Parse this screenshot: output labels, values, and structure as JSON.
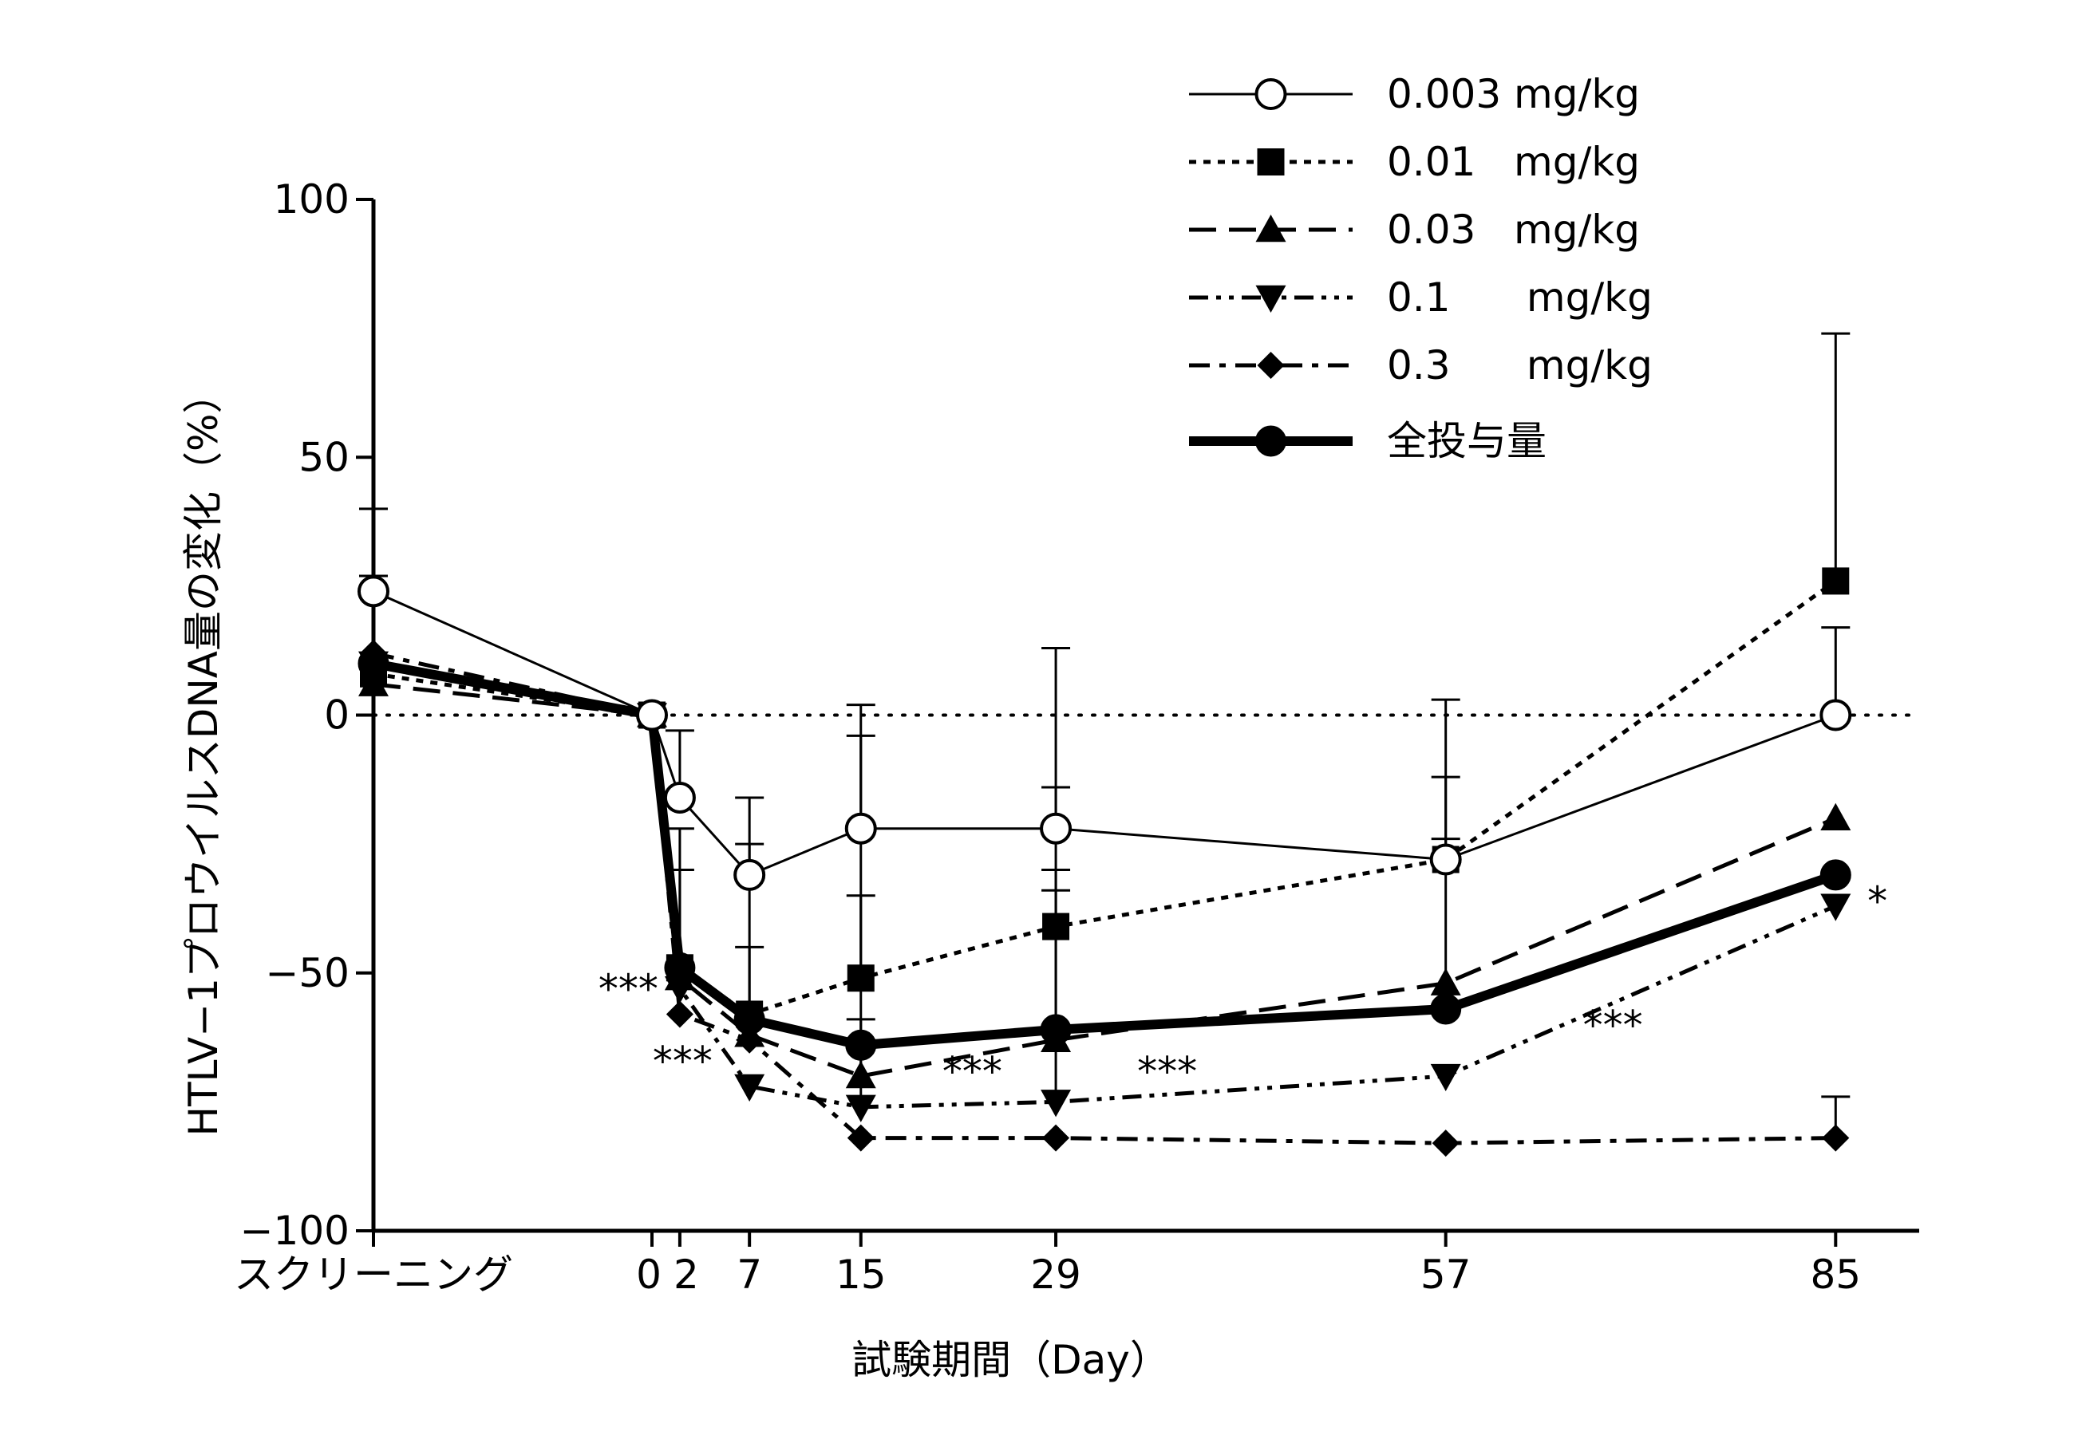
{
  "chart_data": {
    "type": "line",
    "xlabel": "試験期間（Day）",
    "ylabel": "HTLV−1プロウイルスDNA量の変化（%）",
    "ylim": [
      -100,
      100
    ],
    "yticks": [
      100,
      50,
      0,
      -50,
      -100
    ],
    "reference_line_y": 0,
    "x_categories": [
      {
        "label": "スクリーニング",
        "x": -20
      },
      {
        "label": "0",
        "x": 0
      },
      {
        "label": "2",
        "x": 2
      },
      {
        "label": "7",
        "x": 7
      },
      {
        "label": "15",
        "x": 15
      },
      {
        "label": "29",
        "x": 29
      },
      {
        "label": "57",
        "x": 57
      },
      {
        "label": "85",
        "x": 85
      }
    ],
    "x_domain": [
      -20,
      91
    ],
    "legend_position": "top-right",
    "series": [
      {
        "name": "0.003 mg/kg",
        "marker": "circle-open",
        "line": "solid-thin",
        "x": [
          -20,
          0,
          2,
          7,
          15,
          29,
          57,
          85
        ],
        "y": [
          24,
          0,
          -16,
          -31,
          -22,
          -22,
          -28,
          0
        ],
        "err_upper": [
          40,
          0,
          -3,
          -16,
          2,
          13,
          3,
          17
        ]
      },
      {
        "name": "0.01   mg/kg",
        "marker": "square",
        "line": "dotted",
        "x": [
          -20,
          0,
          2,
          7,
          15,
          29,
          57,
          85
        ],
        "y": [
          8,
          0,
          -49,
          -58,
          -51,
          -41,
          -28,
          26
        ],
        "err_upper": [
          27,
          0,
          -22,
          -25,
          -4,
          -14,
          -12,
          74
        ]
      },
      {
        "name": "0.03   mg/kg",
        "marker": "triangle-up",
        "line": "dashed",
        "x": [
          -20,
          0,
          2,
          7,
          15,
          29,
          57,
          85
        ],
        "y": [
          6,
          0,
          -51,
          -62,
          -70,
          -63,
          -52,
          -20
        ],
        "err_upper": [
          null,
          null,
          -30,
          -45,
          -35,
          -30,
          -24,
          null
        ]
      },
      {
        "name": "0.1      mg/kg",
        "marker": "triangle-down",
        "line": "dash-dot-dot",
        "x": [
          -20,
          0,
          2,
          7,
          15,
          29,
          57,
          85
        ],
        "y": [
          10,
          0,
          -53,
          -72,
          -76,
          -75,
          -70,
          -37
        ],
        "err_upper": [
          null,
          null,
          null,
          null,
          -59,
          -34,
          null,
          null
        ]
      },
      {
        "name": "0.3      mg/kg",
        "marker": "diamond",
        "line": "dash-dot",
        "x": [
          -20,
          0,
          2,
          7,
          15,
          29,
          57,
          85
        ],
        "y": [
          12,
          0,
          -58,
          -63,
          -82,
          -82,
          -83,
          -82
        ],
        "err_upper": [
          null,
          null,
          null,
          null,
          null,
          null,
          null,
          -74
        ]
      },
      {
        "name": "全投与量",
        "marker": "circle-filled",
        "line": "solid-thick",
        "x": [
          -20,
          0,
          2,
          7,
          15,
          29,
          57,
          85
        ],
        "y": [
          10,
          0,
          -49,
          -59,
          -64,
          -61,
          -57,
          -31
        ],
        "err_upper": [
          null,
          null,
          null,
          null,
          null,
          null,
          null,
          null
        ]
      }
    ],
    "annotations": [
      {
        "text": "***",
        "x": -1.7,
        "y": -53
      },
      {
        "text": "***",
        "x": 2.2,
        "y": -67
      },
      {
        "text": "***",
        "x": 23,
        "y": -69
      },
      {
        "text": "***",
        "x": 37,
        "y": -69
      },
      {
        "text": "***",
        "x": 69,
        "y": -60
      },
      {
        "text": "*",
        "x": 88,
        "y": -36
      }
    ]
  }
}
